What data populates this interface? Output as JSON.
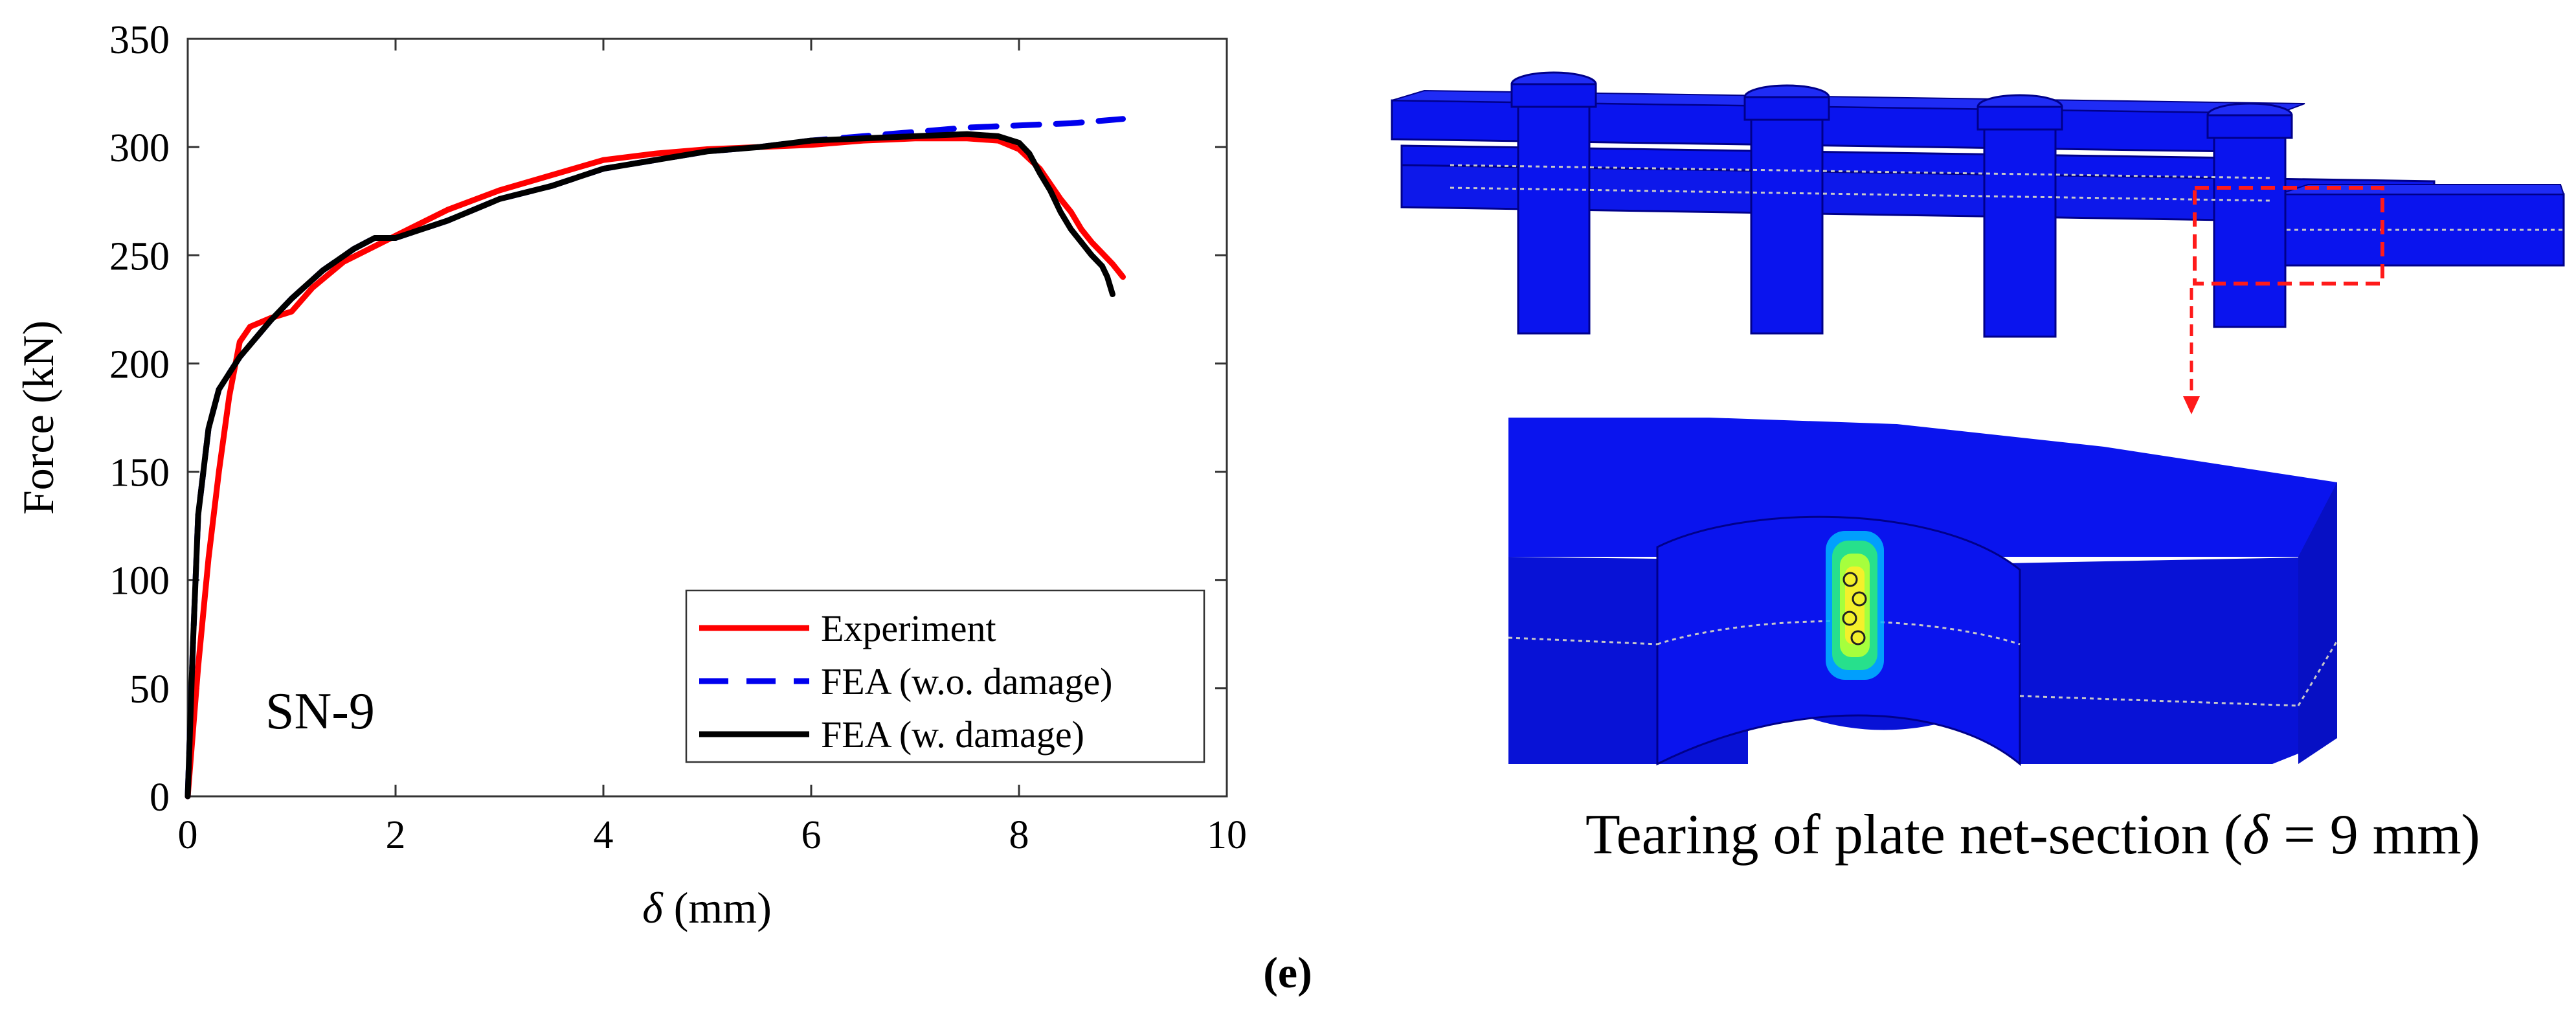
{
  "chart_data": {
    "type": "line",
    "xlabel_symbol": "δ",
    "xlabel_unit": "(mm)",
    "ylabel": "Force (kN)",
    "xlim": [
      0,
      10
    ],
    "ylim": [
      0,
      350
    ],
    "xticks": [
      0,
      2,
      4,
      6,
      8,
      10
    ],
    "yticks": [
      0,
      50,
      100,
      150,
      200,
      250,
      300,
      350
    ],
    "grid": false,
    "legend_position": "bottom-right",
    "annotation": "SN-9",
    "series": [
      {
        "name": "Experiment",
        "color": "#ff0000",
        "style": "solid",
        "x": [
          0,
          0.1,
          0.2,
          0.3,
          0.4,
          0.5,
          0.6,
          0.8,
          1.0,
          1.2,
          1.5,
          2.0,
          2.5,
          3.0,
          3.5,
          4.0,
          4.5,
          5.0,
          5.5,
          6.0,
          6.5,
          7.0,
          7.5,
          7.8,
          8.0,
          8.2,
          8.3,
          8.4,
          8.5,
          8.6,
          8.7,
          8.8,
          8.9,
          9.0
        ],
        "y": [
          0,
          60,
          110,
          150,
          185,
          210,
          217,
          221,
          224,
          235,
          247,
          259,
          271,
          280,
          287,
          294,
          297,
          299,
          300,
          301,
          303,
          304,
          304,
          303,
          299,
          290,
          283,
          276,
          270,
          262,
          256,
          251,
          246,
          240
        ]
      },
      {
        "name": "FEA (w.o. damage)",
        "color": "#0000ee",
        "style": "dashed",
        "x": [
          0,
          0.05,
          0.1,
          0.2,
          0.3,
          0.5,
          0.8,
          1.0,
          1.3,
          1.6,
          1.8,
          2.0,
          2.5,
          3.0,
          3.5,
          4.0,
          4.5,
          5.0,
          5.5,
          6.0,
          6.5,
          7.0,
          7.5,
          8.0,
          8.5,
          9.0
        ],
        "y": [
          0,
          70,
          130,
          170,
          188,
          203,
          220,
          230,
          243,
          253,
          258,
          258,
          266,
          276,
          282,
          290,
          294,
          298,
          300,
          303,
          305,
          307,
          309,
          310,
          311,
          313
        ]
      },
      {
        "name": "FEA (w. damage)",
        "color": "#000000",
        "style": "solid",
        "x": [
          0,
          0.05,
          0.1,
          0.2,
          0.3,
          0.5,
          0.8,
          1.0,
          1.3,
          1.6,
          1.8,
          2.0,
          2.5,
          3.0,
          3.5,
          4.0,
          4.5,
          5.0,
          5.5,
          6.0,
          6.5,
          7.0,
          7.5,
          7.8,
          8.0,
          8.1,
          8.2,
          8.3,
          8.4,
          8.5,
          8.6,
          8.7,
          8.8,
          8.85,
          8.9
        ],
        "y": [
          0,
          70,
          130,
          170,
          188,
          203,
          220,
          230,
          243,
          253,
          258,
          258,
          266,
          276,
          282,
          290,
          294,
          298,
          300,
          303,
          304,
          305,
          306,
          305,
          302,
          297,
          288,
          280,
          270,
          262,
          256,
          250,
          245,
          240,
          232
        ]
      }
    ]
  },
  "illustration": {
    "caption_prefix": "Tearing  of plate net-section (",
    "caption_symbol": "δ",
    "caption_suffix": " = 9 mm)",
    "model_color": "#0a14ee",
    "highlight_color": "#ff1a1a"
  },
  "panel_label": "(e)"
}
